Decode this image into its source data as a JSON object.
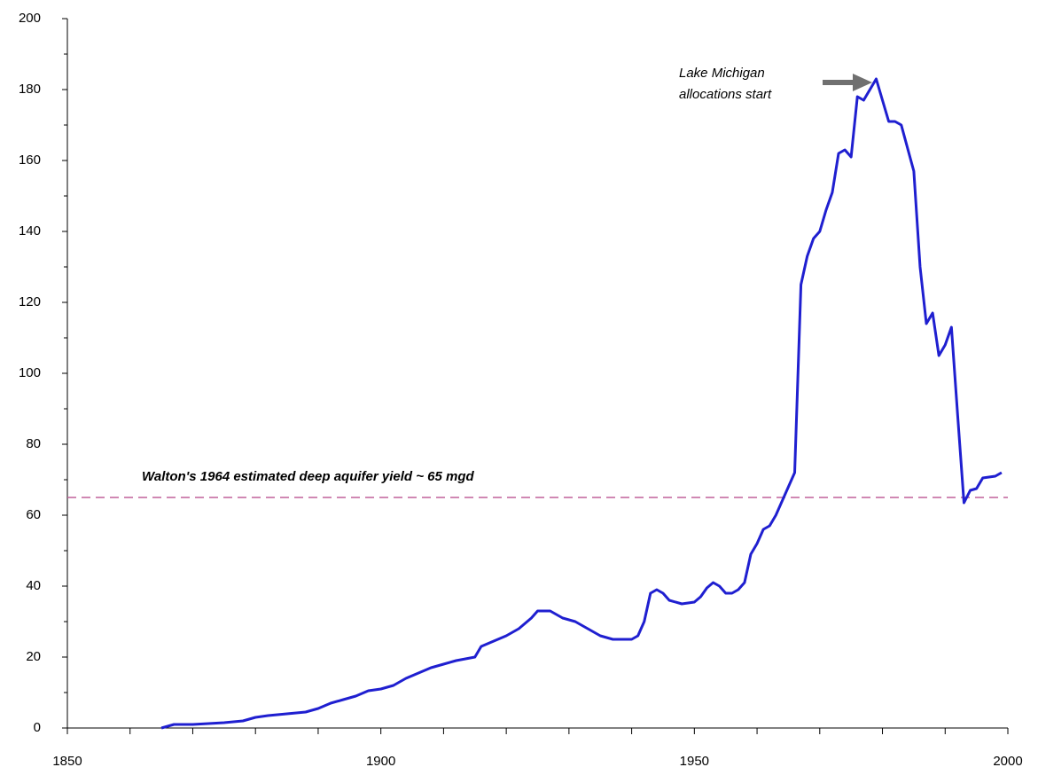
{
  "chart_data": {
    "type": "line",
    "annotations": [
      "Walton's 1964 estimated deep aquifer yield ~ 65 mgd",
      "Lake Michigan",
      "allocations start"
    ],
    "reference_line": {
      "value": 65,
      "color": "#c0609a"
    },
    "x": [
      1865,
      1866,
      1867,
      1870,
      1875,
      1878,
      1880,
      1882,
      1885,
      1888,
      1890,
      1892,
      1894,
      1896,
      1898,
      1900,
      1902,
      1904,
      1906,
      1908,
      1910,
      1912,
      1915,
      1916,
      1918,
      1920,
      1922,
      1924,
      1925,
      1927,
      1929,
      1931,
      1933,
      1935,
      1937,
      1940,
      1941,
      1942,
      1943,
      1944,
      1945,
      1946,
      1948,
      1950,
      1951,
      1952,
      1953,
      1954,
      1955,
      1956,
      1957,
      1958,
      1959,
      1960,
      1961,
      1962,
      1963,
      1964,
      1965,
      1966,
      1967,
      1968,
      1969,
      1970,
      1971,
      1972,
      1973,
      1974,
      1975,
      1976,
      1977,
      1978,
      1979,
      1980,
      1981,
      1982,
      1983,
      1985,
      1986,
      1987,
      1988,
      1989,
      1990,
      1991,
      1992,
      1993,
      1994,
      1995,
      1996,
      1998,
      1999
    ],
    "series": [
      {
        "color": "#1f1fd0",
        "values": [
          0,
          0.5,
          1,
          1,
          1.5,
          2,
          3,
          3.5,
          4,
          4.5,
          5.5,
          7,
          8,
          9,
          10.5,
          11,
          12,
          14,
          15.5,
          17,
          18,
          19,
          20,
          23,
          24.5,
          26,
          28,
          31,
          33,
          33,
          31,
          30,
          28,
          26,
          25,
          25,
          26,
          30,
          38,
          39,
          38,
          36,
          35,
          35.5,
          37,
          39.5,
          41,
          40,
          38,
          38,
          39,
          41,
          49,
          52,
          56,
          57,
          60,
          64,
          68,
          72,
          125,
          133,
          138,
          140,
          146,
          151,
          162,
          163,
          161,
          178,
          177,
          180,
          183,
          177,
          171,
          171,
          170,
          157,
          130,
          114,
          117,
          105,
          108,
          113,
          88,
          63.5,
          67,
          67.5,
          70.5,
          71,
          72
        ]
      }
    ],
    "xlim": [
      1850,
      2000
    ],
    "xticks": [
      1850,
      1900,
      1950,
      2000
    ],
    "xminorticks": [
      1860,
      1870,
      1880,
      1890,
      1910,
      1920,
      1930,
      1940,
      1960,
      1970,
      1980,
      1990
    ],
    "ylim": [
      0,
      200
    ],
    "yticks": [
      0,
      20,
      40,
      60,
      80,
      100,
      120,
      140,
      160,
      180,
      200
    ],
    "yminorticks": [
      10,
      30,
      50,
      70,
      90,
      110,
      130,
      150,
      170,
      190
    ]
  }
}
